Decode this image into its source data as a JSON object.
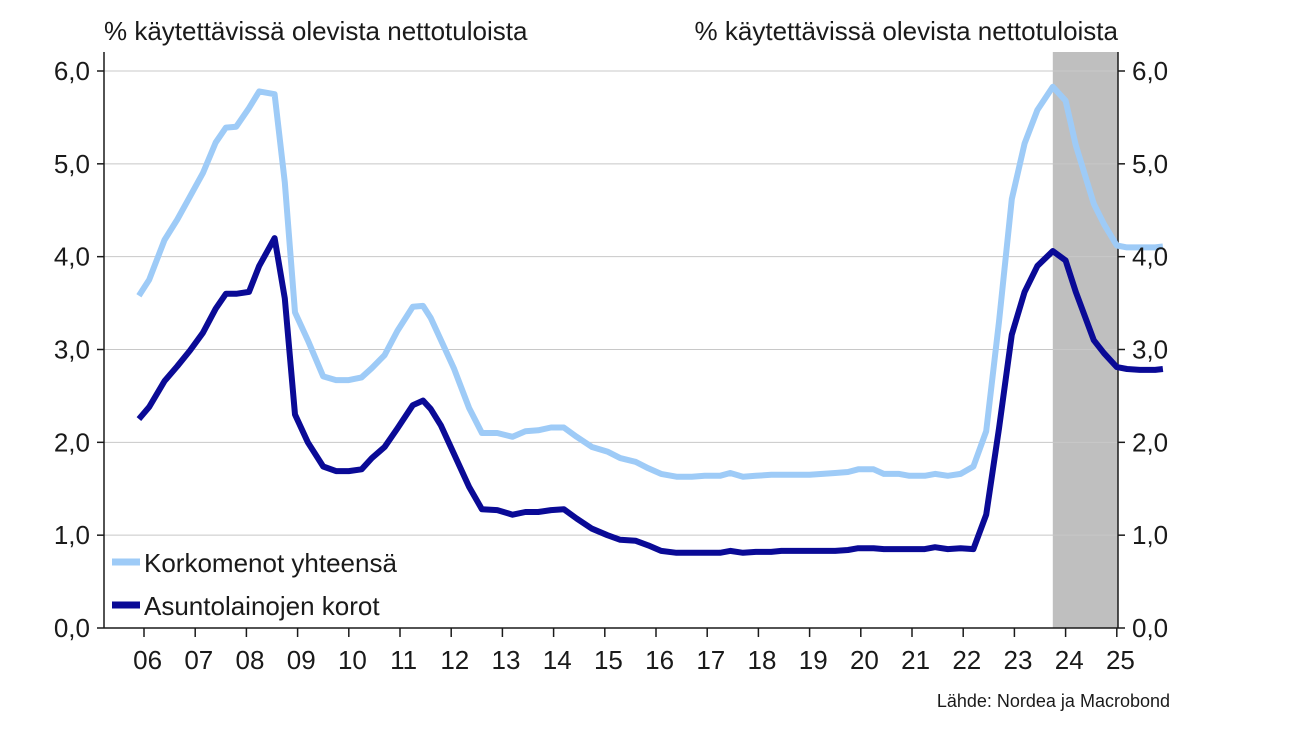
{
  "chart_data": {
    "type": "line",
    "ylabel_left": "% käytettävissä olevista nettotuloista",
    "ylabel_right": "% käytettävissä olevista nettotuloista",
    "source": "Lähde: Nordea ja Macrobond",
    "ylim": [
      0,
      6
    ],
    "y_ticks": [
      "0,0",
      "1,0",
      "2,0",
      "3,0",
      "4,0",
      "5,0",
      "6,0"
    ],
    "xlim": [
      2005.8,
      2025.9
    ],
    "x_ticks": [
      "06",
      "07",
      "08",
      "09",
      "10",
      "11",
      "12",
      "13",
      "14",
      "15",
      "16",
      "17",
      "18",
      "19",
      "20",
      "21",
      "22",
      "23",
      "24",
      "25"
    ],
    "grid": "horizontal",
    "shaded_period": [
      2023.75,
      2025.98
    ],
    "shaded_color": "#bfbfbf",
    "legend_position": "bottom-left",
    "series": [
      {
        "name": "Korkomenot yhteensä",
        "color": "#9ecbf7",
        "x": [
          2005.9,
          2006.1,
          2006.4,
          2006.65,
          2006.9,
          2007.15,
          2007.4,
          2007.6,
          2007.8,
          2008.05,
          2008.25,
          2008.55,
          2008.75,
          2008.95,
          2009.2,
          2009.5,
          2009.75,
          2010.0,
          2010.25,
          2010.45,
          2010.7,
          2010.95,
          2011.25,
          2011.45,
          2011.6,
          2011.8,
          2012.05,
          2012.35,
          2012.6,
          2012.9,
          2013.2,
          2013.45,
          2013.7,
          2013.95,
          2014.2,
          2014.45,
          2014.75,
          2015.05,
          2015.3,
          2015.6,
          2015.85,
          2016.1,
          2016.4,
          2016.7,
          2016.95,
          2017.25,
          2017.45,
          2017.7,
          2017.95,
          2018.25,
          2018.45,
          2018.75,
          2019.0,
          2019.25,
          2019.5,
          2019.75,
          2019.95,
          2020.25,
          2020.45,
          2020.75,
          2020.95,
          2021.25,
          2021.45,
          2021.7,
          2021.95,
          2022.2,
          2022.45,
          2022.7,
          2022.95,
          2023.2,
          2023.45,
          2023.75,
          2024.0,
          2024.2,
          2024.55,
          2024.75,
          2025.0,
          2025.2,
          2025.45,
          2025.75,
          2025.9
        ],
        "values": [
          3.58,
          3.75,
          4.18,
          4.4,
          4.65,
          4.9,
          5.23,
          5.39,
          5.4,
          5.6,
          5.78,
          5.75,
          4.8,
          3.4,
          3.1,
          2.71,
          2.67,
          2.67,
          2.7,
          2.8,
          2.94,
          3.2,
          3.46,
          3.47,
          3.34,
          3.1,
          2.8,
          2.37,
          2.1,
          2.1,
          2.06,
          2.12,
          2.13,
          2.16,
          2.16,
          2.06,
          1.95,
          1.9,
          1.83,
          1.79,
          1.72,
          1.66,
          1.63,
          1.63,
          1.64,
          1.64,
          1.67,
          1.63,
          1.64,
          1.65,
          1.65,
          1.65,
          1.65,
          1.66,
          1.67,
          1.68,
          1.71,
          1.71,
          1.66,
          1.66,
          1.64,
          1.64,
          1.66,
          1.64,
          1.66,
          1.74,
          2.12,
          3.3,
          4.62,
          5.22,
          5.58,
          5.83,
          5.68,
          5.2,
          4.57,
          4.35,
          4.12,
          4.1,
          4.1,
          4.1,
          4.11
        ]
      },
      {
        "name": "Asuntolainojen korot",
        "color": "#0a0a96",
        "x": [
          2005.9,
          2006.1,
          2006.4,
          2006.65,
          2006.9,
          2007.15,
          2007.4,
          2007.6,
          2007.8,
          2008.05,
          2008.25,
          2008.55,
          2008.75,
          2008.95,
          2009.2,
          2009.5,
          2009.75,
          2010.0,
          2010.25,
          2010.45,
          2010.7,
          2010.95,
          2011.25,
          2011.45,
          2011.6,
          2011.8,
          2012.05,
          2012.35,
          2012.6,
          2012.9,
          2013.2,
          2013.45,
          2013.7,
          2013.95,
          2014.2,
          2014.45,
          2014.75,
          2015.05,
          2015.3,
          2015.6,
          2015.85,
          2016.1,
          2016.4,
          2016.7,
          2016.95,
          2017.25,
          2017.45,
          2017.7,
          2017.95,
          2018.25,
          2018.45,
          2018.75,
          2019.0,
          2019.25,
          2019.5,
          2019.75,
          2019.95,
          2020.25,
          2020.45,
          2020.75,
          2020.95,
          2021.25,
          2021.45,
          2021.7,
          2021.95,
          2022.2,
          2022.45,
          2022.7,
          2022.95,
          2023.2,
          2023.45,
          2023.75,
          2024.0,
          2024.2,
          2024.55,
          2024.75,
          2025.0,
          2025.2,
          2025.45,
          2025.75,
          2025.9
        ],
        "values": [
          2.25,
          2.38,
          2.66,
          2.82,
          2.99,
          3.18,
          3.44,
          3.6,
          3.6,
          3.62,
          3.9,
          4.2,
          3.55,
          2.3,
          2.0,
          1.74,
          1.69,
          1.69,
          1.71,
          1.83,
          1.95,
          2.15,
          2.4,
          2.45,
          2.36,
          2.18,
          1.88,
          1.52,
          1.28,
          1.27,
          1.22,
          1.25,
          1.25,
          1.27,
          1.28,
          1.18,
          1.07,
          1.0,
          0.95,
          0.94,
          0.89,
          0.83,
          0.81,
          0.81,
          0.81,
          0.81,
          0.83,
          0.81,
          0.82,
          0.82,
          0.83,
          0.83,
          0.83,
          0.83,
          0.83,
          0.84,
          0.86,
          0.86,
          0.85,
          0.85,
          0.85,
          0.85,
          0.87,
          0.85,
          0.86,
          0.85,
          1.22,
          2.15,
          3.16,
          3.62,
          3.9,
          4.06,
          3.96,
          3.62,
          3.1,
          2.96,
          2.81,
          2.79,
          2.78,
          2.78,
          2.79
        ]
      }
    ]
  }
}
